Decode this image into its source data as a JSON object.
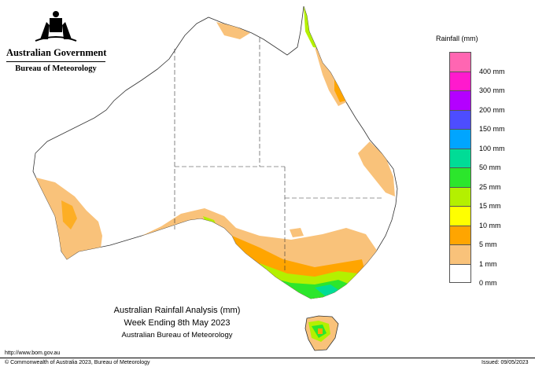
{
  "branding": {
    "government": "Australian Government",
    "agency": "Bureau of Meteorology",
    "crest_icon": "commonwealth-coat-of-arms"
  },
  "legend": {
    "title": "Rainfall (mm)",
    "items": [
      {
        "label": "",
        "color": "#ff66b2"
      },
      {
        "label": "400 mm",
        "color": "#ff1acd"
      },
      {
        "label": "300 mm",
        "color": "#b400ff"
      },
      {
        "label": "200 mm",
        "color": "#4d4dff"
      },
      {
        "label": "150 mm",
        "color": "#00a5ff"
      },
      {
        "label": "100 mm",
        "color": "#00dc96"
      },
      {
        "label": "50 mm",
        "color": "#2ce62c"
      },
      {
        "label": "25 mm",
        "color": "#b4f000"
      },
      {
        "label": "15 mm",
        "color": "#ffff00"
      },
      {
        "label": "10 mm",
        "color": "#ffa500"
      },
      {
        "label": "5 mm",
        "color": "#f9c27a"
      },
      {
        "label": "1 mm",
        "color": "#ffffff"
      },
      {
        "label": "0 mm",
        "color": ""
      }
    ]
  },
  "caption": {
    "title": "Australian Rainfall Analysis (mm)",
    "period": "Week Ending 8th May 2023",
    "source": "Australian Bureau of Meteorology"
  },
  "footer": {
    "url": "http://www.bom.gov.au",
    "copyright": "© Commonwealth of Australia 2023, Bureau of Meteorology",
    "issued": "Issued: 09/05/2023"
  }
}
